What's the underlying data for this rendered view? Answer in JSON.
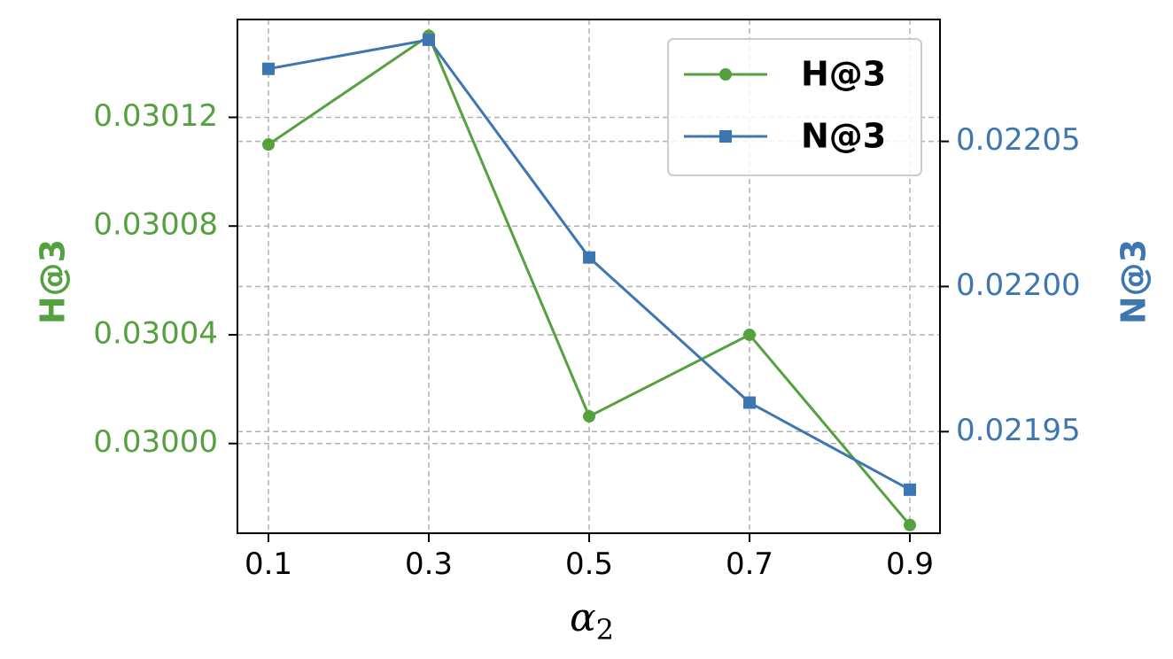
{
  "chart_data": {
    "type": "line",
    "x": [
      0.1,
      0.3,
      0.5,
      0.7,
      0.9
    ],
    "x_tick_labels": [
      "0.1",
      "0.3",
      "0.5",
      "0.7",
      "0.9"
    ],
    "xlabel_main": "α",
    "xlabel_sub": "2",
    "grid": true,
    "legend_position": "top-right",
    "left_axis": {
      "label": "H@3",
      "color": "#55a13f",
      "ylim": [
        0.029967,
        0.030156
      ],
      "ticks": [
        0.03,
        0.03004,
        0.03008,
        0.03012
      ],
      "tick_labels": [
        "0.03000",
        "0.03004",
        "0.03008",
        "0.03012"
      ]
    },
    "right_axis": {
      "label": "N@3",
      "color": "#3d76b0",
      "ylim": [
        0.021915,
        0.022092
      ],
      "ticks": [
        0.02195,
        0.022,
        0.02205
      ],
      "tick_labels": [
        "0.02195",
        "0.02200",
        "0.02205"
      ]
    },
    "series": [
      {
        "name": "H@3",
        "axis": "left",
        "marker": "circle",
        "color": "#55a13f",
        "values": [
          0.03011,
          0.03015,
          0.03001,
          0.03004,
          0.02997
        ]
      },
      {
        "name": "N@3",
        "axis": "right",
        "marker": "square",
        "color": "#3d76b0",
        "values": [
          0.022075,
          0.022085,
          0.02201,
          0.02196,
          0.02193
        ]
      }
    ]
  }
}
